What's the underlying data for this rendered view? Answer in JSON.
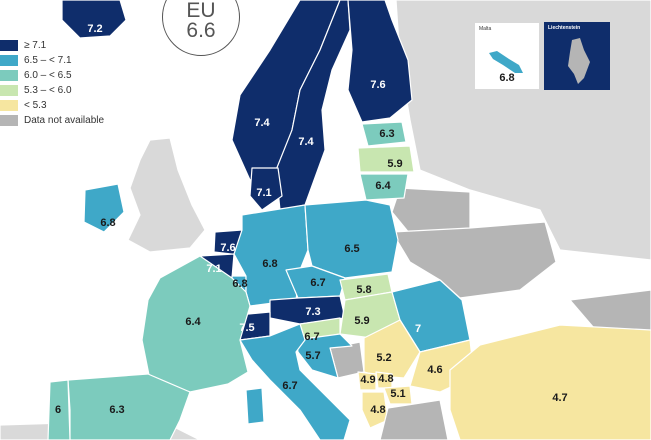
{
  "colors": {
    "sea": "#ffffff",
    "cat_ge71": "#0f2d6b",
    "cat_65_71": "#3fa8c8",
    "cat_60_65": "#7ccbbd",
    "cat_53_60": "#c8e6b0",
    "cat_lt53": "#f6e6a0",
    "not_available": "#b5b5b5",
    "outside": "#d9d9d9"
  },
  "eu_badge": {
    "code": "EU",
    "value": "6.6"
  },
  "legend": [
    {
      "label": "≥ 7.1",
      "color": "#0f2d6b"
    },
    {
      "label": "6.5 – < 7.1",
      "color": "#3fa8c8"
    },
    {
      "label": "6.0 – < 6.5",
      "color": "#7ccbbd"
    },
    {
      "label": "5.3 – < 6.0",
      "color": "#c8e6b0"
    },
    {
      "label": "< 5.3",
      "color": "#f6e6a0"
    },
    {
      "label": "Data not available",
      "color": "#b5b5b5"
    }
  ],
  "insets": {
    "malta": {
      "title": "Malta",
      "value": "6.8"
    },
    "liechtenstein": {
      "title": "Liechtenstein"
    }
  },
  "values": {
    "iceland": "7.2",
    "norway": "7.4",
    "sweden": "7.4",
    "finland": "7.6",
    "estonia": "6.3",
    "latvia": "5.9",
    "lithuania": "6.4",
    "denmark": "7.1",
    "ireland": "6.8",
    "netherlands": "7.6",
    "belgium": "7.1",
    "luxembourg": "6.8",
    "germany": "6.8",
    "poland": "6.5",
    "czechia": "6.7",
    "austria": "7.3",
    "switzerland": "7.5",
    "slovenia_top": "6.7",
    "slovenia": "5.7",
    "slovakia": "5.8",
    "hungary": "5.9",
    "romania": "7",
    "serbia": "5.2",
    "bulgaria": "4.6",
    "montenegro": "4.9",
    "kosovo": "4.8",
    "north_macedonia": "5.1",
    "albania": "4.8",
    "france": "6.4",
    "italy": "6.7",
    "spain": "6.3",
    "portugal": "6",
    "turkey": "4.7"
  }
}
